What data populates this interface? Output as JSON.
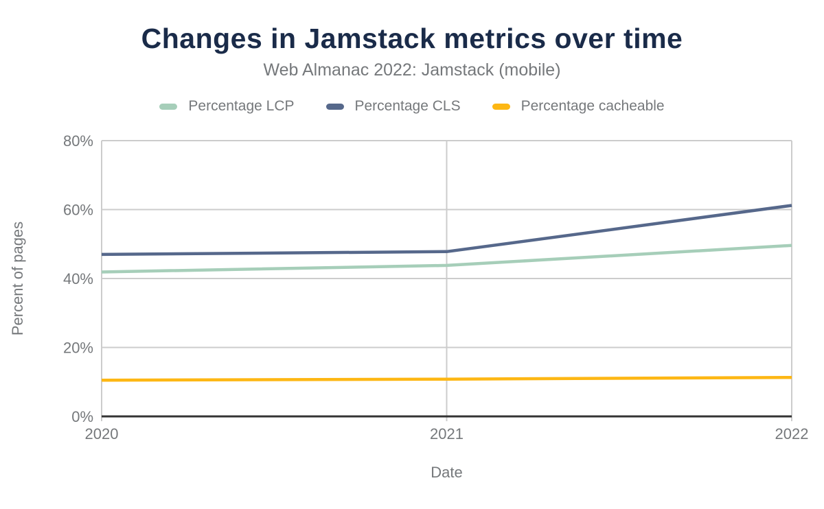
{
  "chart_data": {
    "type": "line",
    "title": "Changes in Jamstack metrics over time",
    "subtitle": "Web Almanac 2022: Jamstack (mobile)",
    "xlabel": "Date",
    "ylabel": "Percent of pages",
    "x": [
      "2020",
      "2021",
      "2022"
    ],
    "series": [
      {
        "name": "Percentage LCP",
        "color": "#a6ceb9",
        "values": [
          41.9,
          43.8,
          49.6
        ]
      },
      {
        "name": "Percentage CLS",
        "color": "#56688b",
        "values": [
          47.0,
          47.8,
          61.2
        ]
      },
      {
        "name": "Percentage cacheable",
        "color": "#fdb714",
        "values": [
          10.5,
          10.8,
          11.3
        ]
      }
    ],
    "ylim": [
      0,
      80
    ],
    "yticks": [
      {
        "value": 0,
        "label": "0%"
      },
      {
        "value": 20,
        "label": "20%"
      },
      {
        "value": 40,
        "label": "40%"
      },
      {
        "value": 60,
        "label": "60%"
      },
      {
        "value": 80,
        "label": "80%"
      }
    ],
    "grid": true,
    "legend_position": "top"
  },
  "colors": {
    "title": "#1a2b49",
    "text": "#75787b",
    "gridline": "#cccccc",
    "axis": "#333333",
    "background": "#ffffff"
  }
}
